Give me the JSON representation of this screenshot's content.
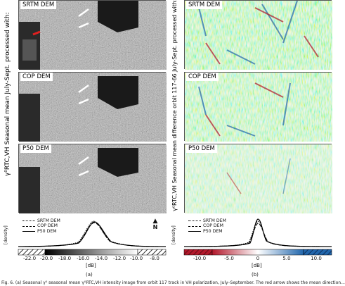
{
  "figure": {
    "left": {
      "axis_title_line1": "Seasonal mean July-Sept. processed with:",
      "axis_title_symbol": "γ⁰RTC,VH",
      "panels": [
        "SRTM DEM",
        "COP DEM",
        "P50 DEM"
      ],
      "north_label": "N",
      "density_label": "[density]",
      "x_unit": "[dB]",
      "ticks": [
        "-22.0",
        "-20.0",
        "-18.0",
        "-16.0",
        "-14.0",
        "-12.0",
        "-10.0",
        "-8.0"
      ],
      "legend": [
        "SRTM DEM",
        "COP DEM",
        "P50 DEM"
      ],
      "sublabel": "(a)"
    },
    "right": {
      "axis_title_line1": "Seasonal mean difference orbit 117-66 July-Sept. processed with:",
      "axis_title_symbol": "γ⁰RTC,VH",
      "panels": [
        "SRTM DEM",
        "COP DEM",
        "P50 DEM"
      ],
      "density_label": "[density]",
      "x_unit": "[dB]",
      "ticks": [
        "-10.0",
        "-5.0",
        "0",
        "5.0",
        "10.0"
      ],
      "legend": [
        "SRTM DEM",
        "COP DEM",
        "P50 DEM"
      ],
      "sublabel": "(b)"
    },
    "caption": "Fig. 6. (a) Seasonal γ⁰ seasonal mean γ⁰RTC,VH intensity image from orbit 117 track in VH polarization, July–September. The red arrow shows the mean direction..."
  },
  "colors": {
    "negative": "#c0392b",
    "positive": "#2166ac",
    "gray_dark": "#1a1a1a",
    "gray_light": "#e8e8e8"
  }
}
